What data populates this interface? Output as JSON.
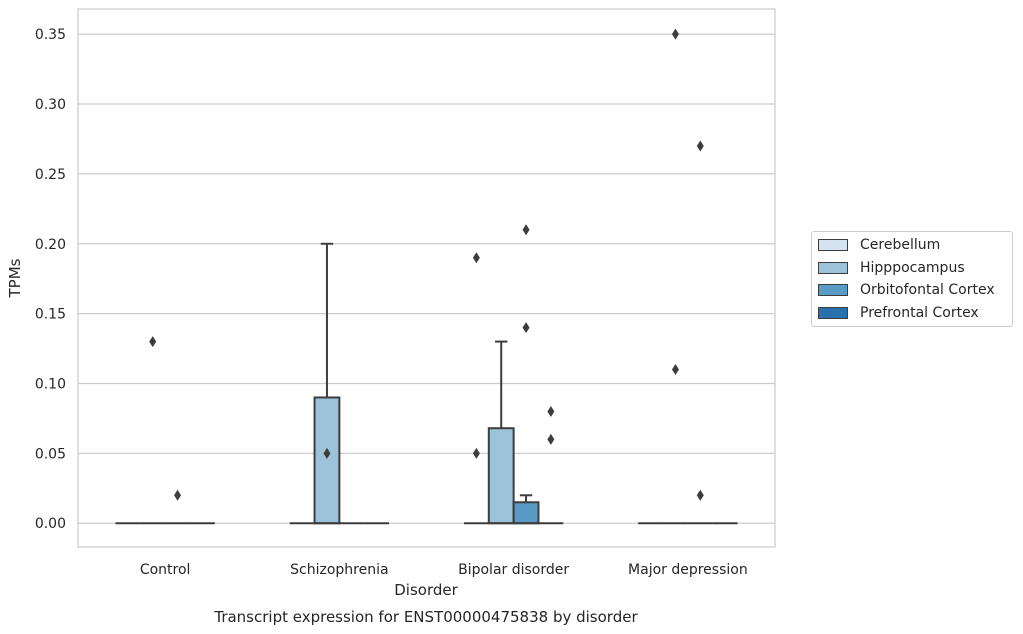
{
  "chart_data": {
    "type": "box",
    "title": "Transcript expression for ENST00000475838 by disorder",
    "xlabel": "Disorder",
    "ylabel": "TPMs",
    "ylim": [
      -0.017,
      0.368
    ],
    "yticks": [
      "0.00",
      "0.05",
      "0.10",
      "0.15",
      "0.20",
      "0.25",
      "0.30",
      "0.35"
    ],
    "ytick_values": [
      0,
      0.05,
      0.1,
      0.15,
      0.2,
      0.25,
      0.3,
      0.35
    ],
    "categories": [
      "Control",
      "Schizophrenia",
      "Bipolar disorder",
      "Major depression"
    ],
    "grid": "horizontal",
    "legend_position": "right",
    "series": [
      {
        "name": "Cerebellum",
        "color": "#d5e3f0",
        "boxes": [
          {
            "q1": 0,
            "median": 0,
            "q3": 0,
            "whisker_low": 0,
            "whisker_high": 0,
            "outliers": []
          },
          {
            "q1": 0,
            "median": 0,
            "q3": 0,
            "whisker_low": 0,
            "whisker_high": 0,
            "outliers": []
          },
          {
            "q1": 0,
            "median": 0,
            "q3": 0,
            "whisker_low": 0,
            "whisker_high": 0,
            "outliers": [
              0.19,
              0.05
            ]
          },
          {
            "q1": 0,
            "median": 0,
            "q3": 0,
            "whisker_low": 0,
            "whisker_high": 0,
            "outliers": []
          }
        ]
      },
      {
        "name": "Hipppocampus",
        "color": "#9cc3da",
        "boxes": [
          {
            "q1": 0,
            "median": 0,
            "q3": 0,
            "whisker_low": 0,
            "whisker_high": 0,
            "outliers": [
              0.13
            ]
          },
          {
            "q1": 0,
            "median": 0,
            "q3": 0.09,
            "whisker_low": 0,
            "whisker_high": 0.2,
            "outliers": [
              0.05
            ]
          },
          {
            "q1": 0,
            "median": 0,
            "q3": 0.068,
            "whisker_low": 0,
            "whisker_high": 0.13,
            "outliers": []
          },
          {
            "q1": 0,
            "median": 0,
            "q3": 0,
            "whisker_low": 0,
            "whisker_high": 0,
            "outliers": [
              0.35,
              0.11
            ]
          }
        ]
      },
      {
        "name": "Orbitofontal Cortex",
        "color": "#5a9bc6",
        "boxes": [
          {
            "q1": 0,
            "median": 0,
            "q3": 0,
            "whisker_low": 0,
            "whisker_high": 0,
            "outliers": [
              0.02
            ]
          },
          {
            "q1": 0,
            "median": 0,
            "q3": 0,
            "whisker_low": 0,
            "whisker_high": 0,
            "outliers": []
          },
          {
            "q1": 0,
            "median": 0,
            "q3": 0.015,
            "whisker_low": 0,
            "whisker_high": 0.02,
            "outliers": [
              0.21,
              0.14
            ]
          },
          {
            "q1": 0,
            "median": 0,
            "q3": 0,
            "whisker_low": 0,
            "whisker_high": 0,
            "outliers": [
              0.27,
              0.02
            ]
          }
        ]
      },
      {
        "name": "Prefrontal Cortex",
        "color": "#2970ae",
        "boxes": [
          {
            "q1": 0,
            "median": 0,
            "q3": 0,
            "whisker_low": 0,
            "whisker_high": 0,
            "outliers": []
          },
          {
            "q1": 0,
            "median": 0,
            "q3": 0,
            "whisker_low": 0,
            "whisker_high": 0,
            "outliers": []
          },
          {
            "q1": 0,
            "median": 0,
            "q3": 0,
            "whisker_low": 0,
            "whisker_high": 0,
            "outliers": [
              0.08,
              0.06
            ]
          },
          {
            "q1": 0,
            "median": 0,
            "q3": 0,
            "whisker_low": 0,
            "whisker_high": 0,
            "outliers": []
          }
        ]
      }
    ]
  }
}
